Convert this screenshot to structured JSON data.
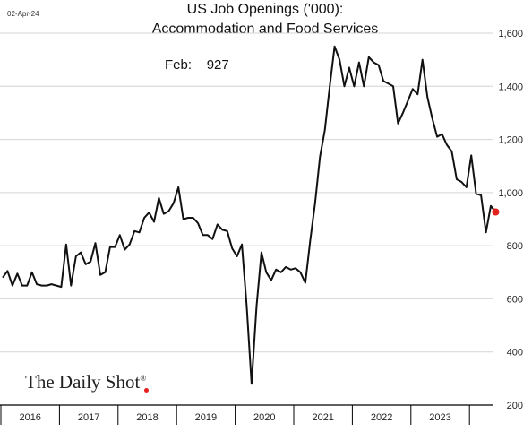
{
  "header": {
    "date_stamp": "02-Apr-24",
    "title_line1": "US Job Openings ('000):",
    "title_line2": "Accommodation and Food Services",
    "annotation_label": "Feb:",
    "annotation_value": "927"
  },
  "brand": {
    "name": "The Daily Shot",
    "mark": "®"
  },
  "colors": {
    "line": "#111111",
    "last_point": "#e3201b",
    "grid": "#d4d4d4",
    "axis": "#000000"
  },
  "chart_data": {
    "type": "line",
    "title": "US Job Openings ('000): Accommodation and Food Services",
    "xlabel": "",
    "ylabel": "",
    "x_start": "2016-01",
    "frequency": "monthly",
    "ylim": [
      200,
      1600
    ],
    "yticks": [
      200,
      400,
      600,
      800,
      1000,
      1200,
      1400,
      1600
    ],
    "ytick_labels": [
      "200",
      "400",
      "600",
      "800",
      "1,000",
      "1,200",
      "1,400",
      "1,600"
    ],
    "year_labels": [
      "2016",
      "2017",
      "2018",
      "2019",
      "2020",
      "2021",
      "2022",
      "2023"
    ],
    "y_axis_side": "right",
    "grid": "horizontal",
    "last_point": {
      "label": "Feb",
      "value": 927,
      "highlighted": true
    },
    "series": [
      {
        "values": [
          680,
          705,
          650,
          695,
          650,
          650,
          700,
          655,
          650,
          650,
          655,
          650,
          645,
          805,
          650,
          760,
          775,
          730,
          740,
          810,
          690,
          700,
          795,
          795,
          840,
          785,
          805,
          855,
          850,
          905,
          925,
          890,
          980,
          920,
          930,
          960,
          1020,
          900,
          905,
          905,
          885,
          840,
          840,
          825,
          880,
          860,
          855,
          790,
          760,
          805,
          570,
          280,
          570,
          775,
          700,
          670,
          710,
          700,
          720,
          710,
          715,
          700,
          660,
          820,
          960,
          1135,
          1235,
          1400,
          1550,
          1500,
          1400,
          1470,
          1400,
          1490,
          1400,
          1510,
          1490,
          1480,
          1420,
          1410,
          1400,
          1260,
          1300,
          1345,
          1390,
          1370,
          1500,
          1360,
          1280,
          1210,
          1220,
          1180,
          1155,
          1050,
          1040,
          1020,
          1140,
          995,
          990,
          850,
          950,
          927
        ]
      }
    ]
  }
}
